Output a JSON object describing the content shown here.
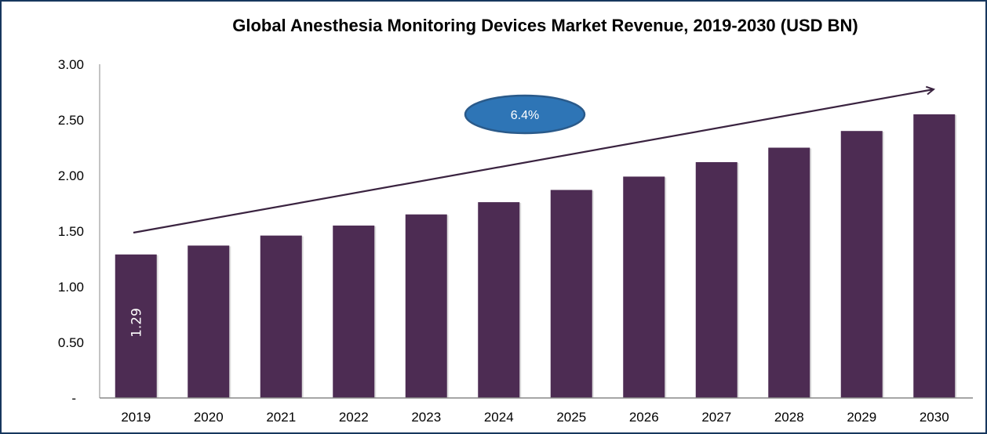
{
  "chart_data": {
    "type": "bar",
    "title": "Global Anesthesia Monitoring Devices Market Revenue, 2019-2030 (USD BN)",
    "xlabel": "",
    "ylabel": "",
    "categories": [
      "2019",
      "2020",
      "2021",
      "2022",
      "2023",
      "2024",
      "2025",
      "2026",
      "2027",
      "2028",
      "2029",
      "2030"
    ],
    "values": [
      1.29,
      1.37,
      1.46,
      1.55,
      1.65,
      1.76,
      1.87,
      1.99,
      2.12,
      2.25,
      2.4,
      2.55
    ],
    "ylim": [
      0,
      3
    ],
    "yticks": [
      "-",
      "0.50",
      "1.00",
      "1.50",
      "2.00",
      "2.50",
      "3.00"
    ],
    "data_labels": [
      {
        "category": "2019",
        "text": "1.29"
      }
    ],
    "annotation": {
      "text": "6.4%",
      "shape": "ellipse",
      "color": "#2e75b6"
    },
    "trend_arrow": true,
    "grid": false,
    "legend": "none",
    "bar_color": "#4d2c53"
  }
}
